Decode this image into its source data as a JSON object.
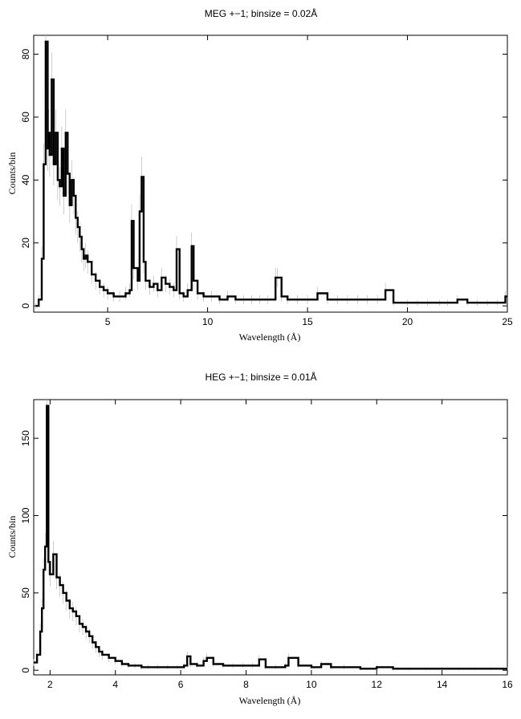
{
  "chart_data": [
    {
      "type": "line",
      "title": "MEG +−1; binsize = 0.02Å",
      "xlabel": "Wavelength (Å)",
      "ylabel": "Counts/bin",
      "xlim": [
        1.3,
        25
      ],
      "ylim": [
        -2,
        86
      ],
      "x_ticks": [
        5,
        10,
        15,
        20,
        25
      ],
      "x_tick_labels": [
        "5",
        "10",
        "15",
        "20",
        "25"
      ],
      "y_ticks": [
        0,
        20,
        40,
        60,
        80
      ],
      "y_tick_labels": [
        "0",
        "20",
        "40",
        "60",
        "80"
      ],
      "error_bars": true,
      "series": [
        {
          "x": [
            1.4,
            1.55,
            1.7,
            1.8,
            1.9,
            2.0,
            2.05,
            2.1,
            2.2,
            2.3,
            2.4,
            2.5,
            2.6,
            2.7,
            2.8,
            2.9,
            3.0,
            3.1,
            3.2,
            3.3,
            3.4,
            3.5,
            3.6,
            3.7,
            3.8,
            3.9,
            4.0,
            4.2,
            4.4,
            4.6,
            4.8,
            5.0,
            5.3,
            5.6,
            5.9,
            6.1,
            6.2,
            6.3,
            6.5,
            6.6,
            6.7,
            6.8,
            6.9,
            7.1,
            7.3,
            7.5,
            7.7,
            7.9,
            8.1,
            8.3,
            8.45,
            8.6,
            8.8,
            9.0,
            9.2,
            9.3,
            9.5,
            9.8,
            10.2,
            10.6,
            11.0,
            11.4,
            11.8,
            12.2,
            12.6,
            13.0,
            13.4,
            13.5,
            13.7,
            14.0,
            14.5,
            15.0,
            15.5,
            16.0,
            16.5,
            17.0,
            17.5,
            18.0,
            18.5,
            18.9,
            19.3,
            20.0,
            20.5,
            21.0,
            21.6,
            22.0,
            22.5,
            23.0,
            23.5,
            24.0,
            24.5,
            24.9
          ],
          "y": [
            0,
            2,
            15,
            45,
            84,
            50,
            55,
            48,
            72,
            45,
            55,
            40,
            38,
            50,
            35,
            55,
            42,
            32,
            40,
            35,
            28,
            25,
            22,
            18,
            15,
            16,
            14,
            10,
            8,
            6,
            5,
            4,
            3,
            3,
            4,
            5,
            27,
            12,
            8,
            30,
            41,
            14,
            8,
            6,
            7,
            5,
            9,
            7,
            6,
            5,
            18,
            4,
            3,
            5,
            19,
            8,
            4,
            3,
            3,
            2,
            3,
            2,
            2,
            2,
            2,
            2,
            9,
            9,
            3,
            2,
            2,
            2,
            4,
            2,
            2,
            2,
            2,
            2,
            2,
            5,
            1,
            1,
            1,
            1,
            1,
            1,
            2,
            1,
            1,
            1,
            1,
            3
          ]
        }
      ]
    },
    {
      "type": "line",
      "title": "HEG +−1; binsize = 0.01Å",
      "xlabel": "Wavelength (Å)",
      "ylabel": "Counts/bin",
      "xlim": [
        1.5,
        16
      ],
      "ylim": [
        -3,
        175
      ],
      "x_ticks": [
        2,
        4,
        6,
        8,
        10,
        12,
        14,
        16
      ],
      "x_tick_labels": [
        "2",
        "4",
        "6",
        "8",
        "10",
        "12",
        "14",
        "16"
      ],
      "y_ticks": [
        0,
        50,
        100,
        150
      ],
      "y_tick_labels": [
        "0",
        "50",
        "100",
        "150"
      ],
      "error_bars": true,
      "series": [
        {
          "x": [
            1.5,
            1.6,
            1.7,
            1.75,
            1.8,
            1.85,
            1.9,
            1.95,
            2.0,
            2.1,
            2.2,
            2.3,
            2.4,
            2.5,
            2.6,
            2.7,
            2.8,
            2.9,
            3.0,
            3.1,
            3.2,
            3.3,
            3.4,
            3.5,
            3.6,
            3.8,
            4.0,
            4.2,
            4.4,
            4.6,
            4.8,
            5.0,
            5.3,
            5.6,
            5.9,
            6.1,
            6.2,
            6.3,
            6.5,
            6.7,
            6.8,
            7.0,
            7.3,
            7.6,
            7.9,
            8.2,
            8.4,
            8.6,
            8.9,
            9.2,
            9.3,
            9.6,
            10.0,
            10.3,
            10.6,
            11.0,
            11.5,
            12.0,
            12.5,
            13.0,
            13.5,
            14.0,
            14.5,
            15.0,
            15.5,
            16.0
          ],
          "y": [
            5,
            10,
            25,
            40,
            65,
            80,
            171,
            70,
            62,
            75,
            60,
            55,
            50,
            45,
            40,
            38,
            35,
            30,
            28,
            25,
            22,
            18,
            15,
            12,
            10,
            8,
            6,
            4,
            3,
            3,
            2,
            2,
            2,
            2,
            2,
            3,
            9,
            4,
            3,
            6,
            8,
            4,
            3,
            3,
            3,
            3,
            7,
            2,
            2,
            3,
            8,
            3,
            2,
            4,
            2,
            2,
            1,
            2,
            1,
            1,
            1,
            1,
            1,
            1,
            1,
            1
          ]
        }
      ]
    }
  ]
}
